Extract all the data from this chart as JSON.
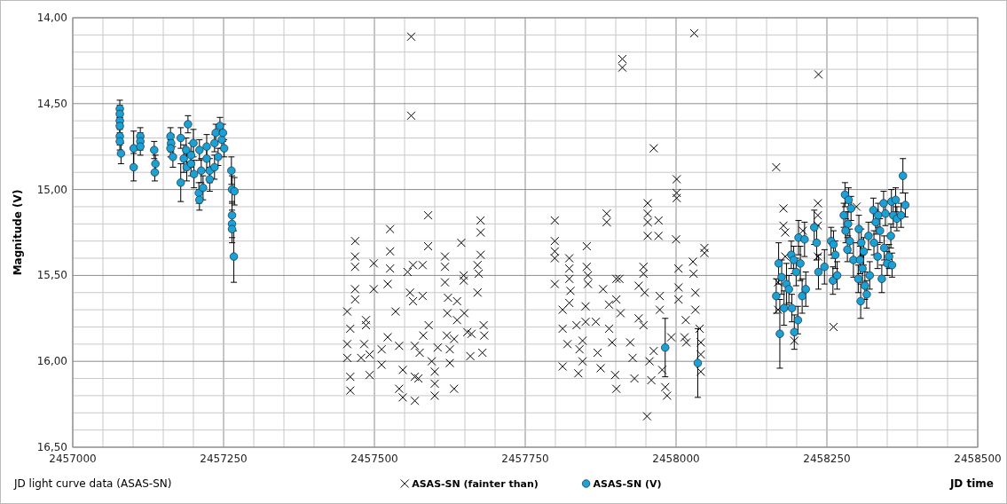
{
  "chart_data": {
    "type": "scatter",
    "xlabel": "JD time",
    "ylabel": "Magnitude (V)",
    "annotations": [
      "JD light curve data (ASAS-SN)"
    ],
    "xlim": [
      2457000,
      2458500
    ],
    "xticks": [
      2457000,
      {
        "value": 2457050,
        "label": null
      },
      {
        "value": 2457100,
        "label": null
      },
      {
        "value": 2457150,
        "label": null
      },
      {
        "value": 2457200,
        "label": null
      },
      2457250,
      {
        "value": 2457300,
        "label": null
      },
      {
        "value": 2457350,
        "label": null
      },
      {
        "value": 2457400,
        "label": null
      },
      {
        "value": 2457450,
        "label": null
      },
      2457500,
      {
        "value": 2457550,
        "label": null
      },
      {
        "value": 2457600,
        "label": null
      },
      {
        "value": 2457650,
        "label": null
      },
      {
        "value": 2457700,
        "label": null
      },
      2457750,
      {
        "value": 2457800,
        "label": null
      },
      {
        "value": 2457850,
        "label": null
      },
      {
        "value": 2457900,
        "label": null
      },
      {
        "value": 2457950,
        "label": null
      },
      2458000,
      {
        "value": 2458050,
        "label": null
      },
      {
        "value": 2458100,
        "label": null
      },
      {
        "value": 2458150,
        "label": null
      },
      {
        "value": 2458200,
        "label": null
      },
      2458250,
      {
        "value": 2458300,
        "label": null
      },
      {
        "value": 2458350,
        "label": null
      },
      {
        "value": 2458400,
        "label": null
      },
      {
        "value": 2458450,
        "label": null
      },
      2458500
    ],
    "ylim": [
      16.5,
      14
    ],
    "yticks": [
      {
        "value": 14,
        "label": "14,00"
      },
      {
        "value": 14.1,
        "label": null
      },
      {
        "value": 14.2,
        "label": null
      },
      {
        "value": 14.3,
        "label": null
      },
      {
        "value": 14.4,
        "label": null
      },
      {
        "value": 14.5,
        "label": "14,50"
      },
      {
        "value": 14.6,
        "label": null
      },
      {
        "value": 14.7,
        "label": null
      },
      {
        "value": 14.8,
        "label": null
      },
      {
        "value": 14.9,
        "label": null
      },
      {
        "value": 15,
        "label": "15,00"
      },
      {
        "value": 15.1,
        "label": null
      },
      {
        "value": 15.2,
        "label": null
      },
      {
        "value": 15.3,
        "label": null
      },
      {
        "value": 15.4,
        "label": null
      },
      {
        "value": 15.5,
        "label": "15,50"
      },
      {
        "value": 15.6,
        "label": null
      },
      {
        "value": 15.7,
        "label": null
      },
      {
        "value": 15.8,
        "label": null
      },
      {
        "value": 15.9,
        "label": null
      },
      {
        "value": 16,
        "label": "16,00"
      },
      {
        "value": 16.1,
        "label": null
      },
      {
        "value": 16.2,
        "label": null
      },
      {
        "value": 16.3,
        "label": null
      },
      {
        "value": 16.4,
        "label": null
      },
      {
        "value": 16.5,
        "label": "16,50"
      }
    ],
    "grid": true,
    "legend": "bottom",
    "series": [
      {
        "name": "ASAS-SN (fainter than)",
        "color": "#000000",
        "marker": "cross",
        "x": [
          2457561,
          2457561,
          2457468,
          2457468,
          2457468,
          2457468,
          2457468,
          2457455,
          2457460,
          2457455,
          2457455,
          2457460,
          2457460,
          2457499,
          2457499,
          2457486,
          2457486,
          2457483,
          2457492,
          2457478,
          2457492,
          2457526,
          2457526,
          2457526,
          2457522,
          2457535,
          2457522,
          2457512,
          2457512,
          2457541,
          2457547,
          2457541,
          2457547,
          2457555,
          2457564,
          2457559,
          2457564,
          2457567,
          2457567,
          2457567,
          2457580,
          2457580,
          2457575,
          2457573,
          2457589,
          2457589,
          2457581,
          2457590,
          2457595,
          2457600,
          2457600,
          2457600,
          2457605,
          2457617,
          2457617,
          2457617,
          2457622,
          2457621,
          2457620,
          2457625,
          2457625,
          2457632,
          2457632,
          2457637,
          2457637,
          2457644,
          2457648,
          2457648,
          2457649,
          2457654,
          2457659,
          2457661,
          2457671,
          2457673,
          2457676,
          2457676,
          2457676,
          2457671,
          2457681,
          2457682,
          2457679,
          2457799,
          2457799,
          2457799,
          2457799,
          2457799,
          2457823,
          2457823,
          2457823,
          2457825,
          2457823,
          2457812,
          2457812,
          2457820,
          2457812,
          2457835,
          2457840,
          2457838,
          2457845,
          2457850,
          2457852,
          2457852,
          2457854,
          2457854,
          2457850,
          2457845,
          2457867,
          2457870,
          2457875,
          2457879,
          2457885,
          2457885,
          2457889,
          2457889,
          2457894,
          2457899,
          2457901,
          2457901,
          2457901,
          2457911,
          2457911,
          2457906,
          2457908,
          2457924,
          2457928,
          2457931,
          2457938,
          2457938,
          2457946,
          2457946,
          2457948,
          2457946,
          2457953,
          2457953,
          2457953,
          2457953,
          2457952,
          2457956,
          2457959,
          2457963,
          2457971,
          2457971,
          2457973,
          2457973,
          2457963,
          2457977,
          2457982,
          2457985,
          2457992,
          2458001,
          2458001,
          2458001,
          2458000,
          2458004,
          2458004,
          2458004,
          2458016,
          2458014,
          2458017,
          2458030,
          2458028,
          2458029,
          2458032,
          2458032,
          2458039,
          2458041,
          2458041,
          2458041,
          2458047,
          2458047,
          2458166,
          2458236,
          2458178,
          2458178,
          2458181,
          2458181,
          2458169,
          2458169,
          2458196,
          2458210,
          2458235,
          2458235,
          2458235,
          2458235,
          2458261,
          2458299
        ],
        "values": [
          14.11,
          14.57,
          15.3,
          15.39,
          15.45,
          15.58,
          15.64,
          15.71,
          15.81,
          15.9,
          15.98,
          16.09,
          16.17,
          15.43,
          15.58,
          15.76,
          15.79,
          15.9,
          15.96,
          15.98,
          16.08,
          15.23,
          15.36,
          15.46,
          15.55,
          15.71,
          15.86,
          15.93,
          16.02,
          15.91,
          16.05,
          16.16,
          16.21,
          15.48,
          15.44,
          15.6,
          15.65,
          15.91,
          16.09,
          16.23,
          15.44,
          15.62,
          15.95,
          16.1,
          15.15,
          15.33,
          15.85,
          15.79,
          16.0,
          16.06,
          16.13,
          16.2,
          15.92,
          15.39,
          15.45,
          15.54,
          15.63,
          15.72,
          15.85,
          15.93,
          16.01,
          16.16,
          15.87,
          15.65,
          15.76,
          15.31,
          15.5,
          15.53,
          15.72,
          15.83,
          15.97,
          15.84,
          15.44,
          15.49,
          15.18,
          15.25,
          15.38,
          15.6,
          15.79,
          15.85,
          15.95,
          15.18,
          15.3,
          15.36,
          15.4,
          15.55,
          15.4,
          15.46,
          15.52,
          15.59,
          15.66,
          15.7,
          15.81,
          15.9,
          16.03,
          15.79,
          15.93,
          16.07,
          16.0,
          15.68,
          15.33,
          15.45,
          15.5,
          15.55,
          15.77,
          15.88,
          15.77,
          15.95,
          16.04,
          15.58,
          15.14,
          15.19,
          15.67,
          15.81,
          15.89,
          16.08,
          16.16,
          15.52,
          15.64,
          14.24,
          14.29,
          15.52,
          15.72,
          15.89,
          15.98,
          16.1,
          15.75,
          15.56,
          15.45,
          15.49,
          15.6,
          15.79,
          15.08,
          15.14,
          15.19,
          15.27,
          16.32,
          16.0,
          16.11,
          14.76,
          15.18,
          15.27,
          15.62,
          15.7,
          15.94,
          16.05,
          16.15,
          16.2,
          15.86,
          14.94,
          15.02,
          15.05,
          15.29,
          15.46,
          15.57,
          15.64,
          15.76,
          15.86,
          15.89,
          14.09,
          15.42,
          15.49,
          15.6,
          15.7,
          15.81,
          15.89,
          15.96,
          16.06,
          15.34,
          15.37,
          14.87,
          14.33,
          15.11,
          15.21,
          15.25,
          15.39,
          15.54,
          15.7,
          15.88,
          15.24,
          15.08,
          15.15,
          15.21,
          15.39,
          15.8,
          15.1
        ]
      },
      {
        "name": "ASAS-SN (V)",
        "color": "#1ba1d6",
        "marker": "circle",
        "x": [
          2457078,
          2457078,
          2457078,
          2457078,
          2457078,
          2457078,
          2457080,
          2457101,
          2457101,
          2457112,
          2457112,
          2457112,
          2457135,
          2457137,
          2457136,
          2457162,
          2457163,
          2457162,
          2457166,
          2457179,
          2457191,
          2457179,
          2457184,
          2457188,
          2457189,
          2457196,
          2457196,
          2457200,
          2457201,
          2457209,
          2457210,
          2457210,
          2457213,
          2457216,
          2457222,
          2457222,
          2457227,
          2457227,
          2457235,
          2457235,
          2457237,
          2457241,
          2457244,
          2457247,
          2457251,
          2457249,
          2457263,
          2457264,
          2457268,
          2457264,
          2457264,
          2457264,
          2457267,
          2457982,
          2458036,
          2458170,
          2458175,
          2458166,
          2458179,
          2458172,
          2458183,
          2458191,
          2458195,
          2458199,
          2458187,
          2458192,
          2458202,
          2458196,
          2458206,
          2458209,
          2458203,
          2458213,
          2458215,
          2458229,
          2458233,
          2458236,
          2458246,
          2458257,
          2458261,
          2458264,
          2458260,
          2458267,
          2458280,
          2458286,
          2458290,
          2458278,
          2458285,
          2458281,
          2458288,
          2458284,
          2458294,
          2458303,
          2458307,
          2458311,
          2458305,
          2458309,
          2458302,
          2458313,
          2458306,
          2458316,
          2458319,
          2458321,
          2458327,
          2458335,
          2458331,
          2458338,
          2458328,
          2458334,
          2458341,
          2458344,
          2458347,
          2458345,
          2458350,
          2458357,
          2458364,
          2458360,
          2458366,
          2458356,
          2458353,
          2458358,
          2458376,
          2458380,
          2458373
        ],
        "values": [
          14.53,
          14.56,
          14.6,
          14.63,
          14.69,
          14.72,
          14.79,
          14.76,
          14.87,
          14.69,
          14.72,
          14.75,
          14.77,
          14.85,
          14.9,
          14.69,
          14.73,
          14.76,
          14.81,
          14.7,
          14.62,
          14.96,
          14.82,
          14.77,
          14.87,
          14.8,
          14.85,
          14.73,
          14.91,
          15.02,
          15.06,
          14.77,
          14.89,
          14.99,
          14.75,
          14.82,
          14.89,
          14.94,
          14.87,
          14.73,
          14.67,
          14.81,
          14.63,
          14.71,
          14.76,
          14.67,
          14.89,
          15.0,
          15.01,
          15.15,
          15.2,
          15.23,
          15.39,
          15.92,
          16.01,
          15.43,
          15.51,
          15.62,
          15.69,
          15.84,
          15.55,
          15.38,
          15.41,
          15.48,
          15.58,
          15.69,
          15.76,
          15.83,
          15.43,
          15.62,
          15.28,
          15.29,
          15.58,
          15.22,
          15.31,
          15.48,
          15.45,
          15.3,
          15.32,
          15.38,
          15.53,
          15.5,
          15.03,
          15.06,
          15.11,
          15.15,
          15.2,
          15.24,
          15.3,
          15.35,
          15.41,
          15.23,
          15.31,
          15.36,
          15.41,
          15.46,
          15.52,
          15.56,
          15.65,
          15.61,
          15.27,
          15.5,
          15.12,
          15.15,
          15.19,
          15.24,
          15.31,
          15.39,
          15.52,
          15.08,
          15.14,
          15.34,
          15.43,
          15.07,
          15.06,
          15.15,
          15.17,
          15.27,
          15.39,
          15.44,
          14.92,
          15.09,
          15.15
        ],
        "errors": [
          0.05,
          0.05,
          0.05,
          0.05,
          0.05,
          0.05,
          0.06,
          0.1,
          0.08,
          0.05,
          0.05,
          0.05,
          0.05,
          0.05,
          0.05,
          0.05,
          0.05,
          0.05,
          0.06,
          0.06,
          0.05,
          0.11,
          0.08,
          0.07,
          0.08,
          0.07,
          0.07,
          0.08,
          0.08,
          0.06,
          0.06,
          0.06,
          0.07,
          0.07,
          0.07,
          0.07,
          0.07,
          0.07,
          0.07,
          0.05,
          0.05,
          0.05,
          0.05,
          0.05,
          0.05,
          0.05,
          0.08,
          0.08,
          0.08,
          0.08,
          0.08,
          0.08,
          0.15,
          0.17,
          0.2,
          0.12,
          0.1,
          0.1,
          0.1,
          0.2,
          0.12,
          0.08,
          0.08,
          0.08,
          0.08,
          0.08,
          0.08,
          0.1,
          0.1,
          0.1,
          0.1,
          0.1,
          0.1,
          0.1,
          0.1,
          0.1,
          0.1,
          0.08,
          0.08,
          0.08,
          0.08,
          0.08,
          0.07,
          0.07,
          0.07,
          0.07,
          0.07,
          0.07,
          0.07,
          0.07,
          0.1,
          0.08,
          0.08,
          0.08,
          0.08,
          0.08,
          0.08,
          0.08,
          0.1,
          0.08,
          0.08,
          0.08,
          0.07,
          0.07,
          0.07,
          0.07,
          0.07,
          0.07,
          0.08,
          0.07,
          0.07,
          0.07,
          0.07,
          0.07,
          0.07,
          0.07,
          0.07,
          0.07,
          0.07,
          0.07,
          0.1,
          0.07,
          0.07
        ]
      }
    ]
  }
}
